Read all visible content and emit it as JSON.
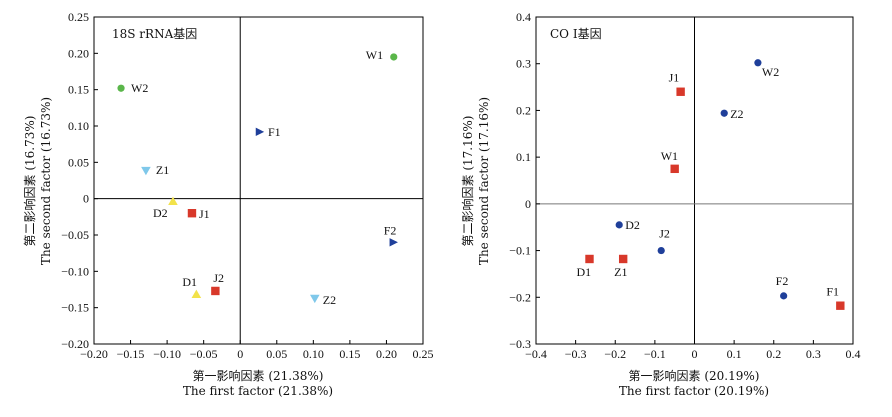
{
  "chart_data": [
    {
      "type": "scatter",
      "title": "18S rRNA基因",
      "xlabel_zh": "第一影响因素 (21.38%)",
      "xlabel_en": "The first factor (21.38%)",
      "ylabel_zh": "第二影响因素 (16.73%)",
      "ylabel_en": "The second factor (16.73%)",
      "xlim": [
        -0.2,
        0.25
      ],
      "ylim": [
        -0.2,
        0.25
      ],
      "xticks": [
        "−0.20",
        "−0.15",
        "−0.10",
        "−0.05",
        "0",
        "0.05",
        "0.10",
        "0.15",
        "0.20",
        "0.25"
      ],
      "yticks": [
        "0.25",
        "0.20",
        "0.15",
        "0.10",
        "0.05",
        "0",
        "−0.05",
        "−0.10",
        "−0.15",
        "−0.20"
      ],
      "points": [
        {
          "label": "W1",
          "x": 0.21,
          "y": 0.195,
          "marker": "circle",
          "color": "#5ab64a"
        },
        {
          "label": "W2",
          "x": -0.163,
          "y": 0.152,
          "marker": "circle",
          "color": "#5ab64a"
        },
        {
          "label": "F1",
          "x": 0.027,
          "y": 0.092,
          "marker": "tri-right",
          "color": "#1f3f9a"
        },
        {
          "label": "F2",
          "x": 0.21,
          "y": -0.06,
          "marker": "tri-right",
          "color": "#1f3f9a"
        },
        {
          "label": "Z1",
          "x": -0.129,
          "y": 0.038,
          "marker": "tri-down",
          "color": "#7fc8ea"
        },
        {
          "label": "Z2",
          "x": 0.102,
          "y": -0.138,
          "marker": "tri-down",
          "color": "#7fc8ea"
        },
        {
          "label": "D2",
          "x": -0.092,
          "y": -0.003,
          "marker": "tri-up",
          "color": "#f2e24a"
        },
        {
          "label": "D1",
          "x": -0.06,
          "y": -0.131,
          "marker": "tri-up",
          "color": "#f2e24a"
        },
        {
          "label": "J1",
          "x": -0.066,
          "y": -0.02,
          "marker": "square",
          "color": "#d8382a"
        },
        {
          "label": "J2",
          "x": -0.034,
          "y": -0.127,
          "marker": "square",
          "color": "#d8382a"
        }
      ]
    },
    {
      "type": "scatter",
      "title": "CO I基因",
      "xlabel_zh": "第一影响因素 (20.19%)",
      "xlabel_en": "The first factor (20.19%)",
      "ylabel_zh": "第二影响因素 (17.16%)",
      "ylabel_en": "The second factor (17.16%)",
      "xlim": [
        -0.4,
        0.4
      ],
      "ylim": [
        -0.3,
        0.4
      ],
      "xticks": [
        "−0.4",
        "−0.3",
        "−0.2",
        "−0.1",
        "0",
        "0.1",
        "0.2",
        "0.3",
        "0.4"
      ],
      "yticks": [
        "0.4",
        "0.3",
        "0.2",
        "0.1",
        "0",
        "−0.1",
        "−0.2",
        "−0.3"
      ],
      "points": [
        {
          "label": "W2",
          "x": 0.16,
          "y": 0.302,
          "marker": "circle",
          "color": "#1f3f9a"
        },
        {
          "label": "Z2",
          "x": 0.075,
          "y": 0.194,
          "marker": "circle",
          "color": "#1f3f9a"
        },
        {
          "label": "D2",
          "x": -0.19,
          "y": -0.045,
          "marker": "circle",
          "color": "#1f3f9a"
        },
        {
          "label": "J2",
          "x": -0.084,
          "y": -0.1,
          "marker": "circle",
          "color": "#1f3f9a"
        },
        {
          "label": "F2",
          "x": 0.225,
          "y": -0.197,
          "marker": "circle",
          "color": "#1f3f9a"
        },
        {
          "label": "J1",
          "x": -0.035,
          "y": 0.24,
          "marker": "square",
          "color": "#d8382a"
        },
        {
          "label": "W1",
          "x": -0.05,
          "y": 0.075,
          "marker": "square",
          "color": "#d8382a"
        },
        {
          "label": "D1",
          "x": -0.265,
          "y": -0.118,
          "marker": "square",
          "color": "#d8382a"
        },
        {
          "label": "Z1",
          "x": -0.18,
          "y": -0.118,
          "marker": "square",
          "color": "#d8382a"
        },
        {
          "label": "F1",
          "x": 0.368,
          "y": -0.218,
          "marker": "square",
          "color": "#d8382a"
        }
      ]
    }
  ]
}
